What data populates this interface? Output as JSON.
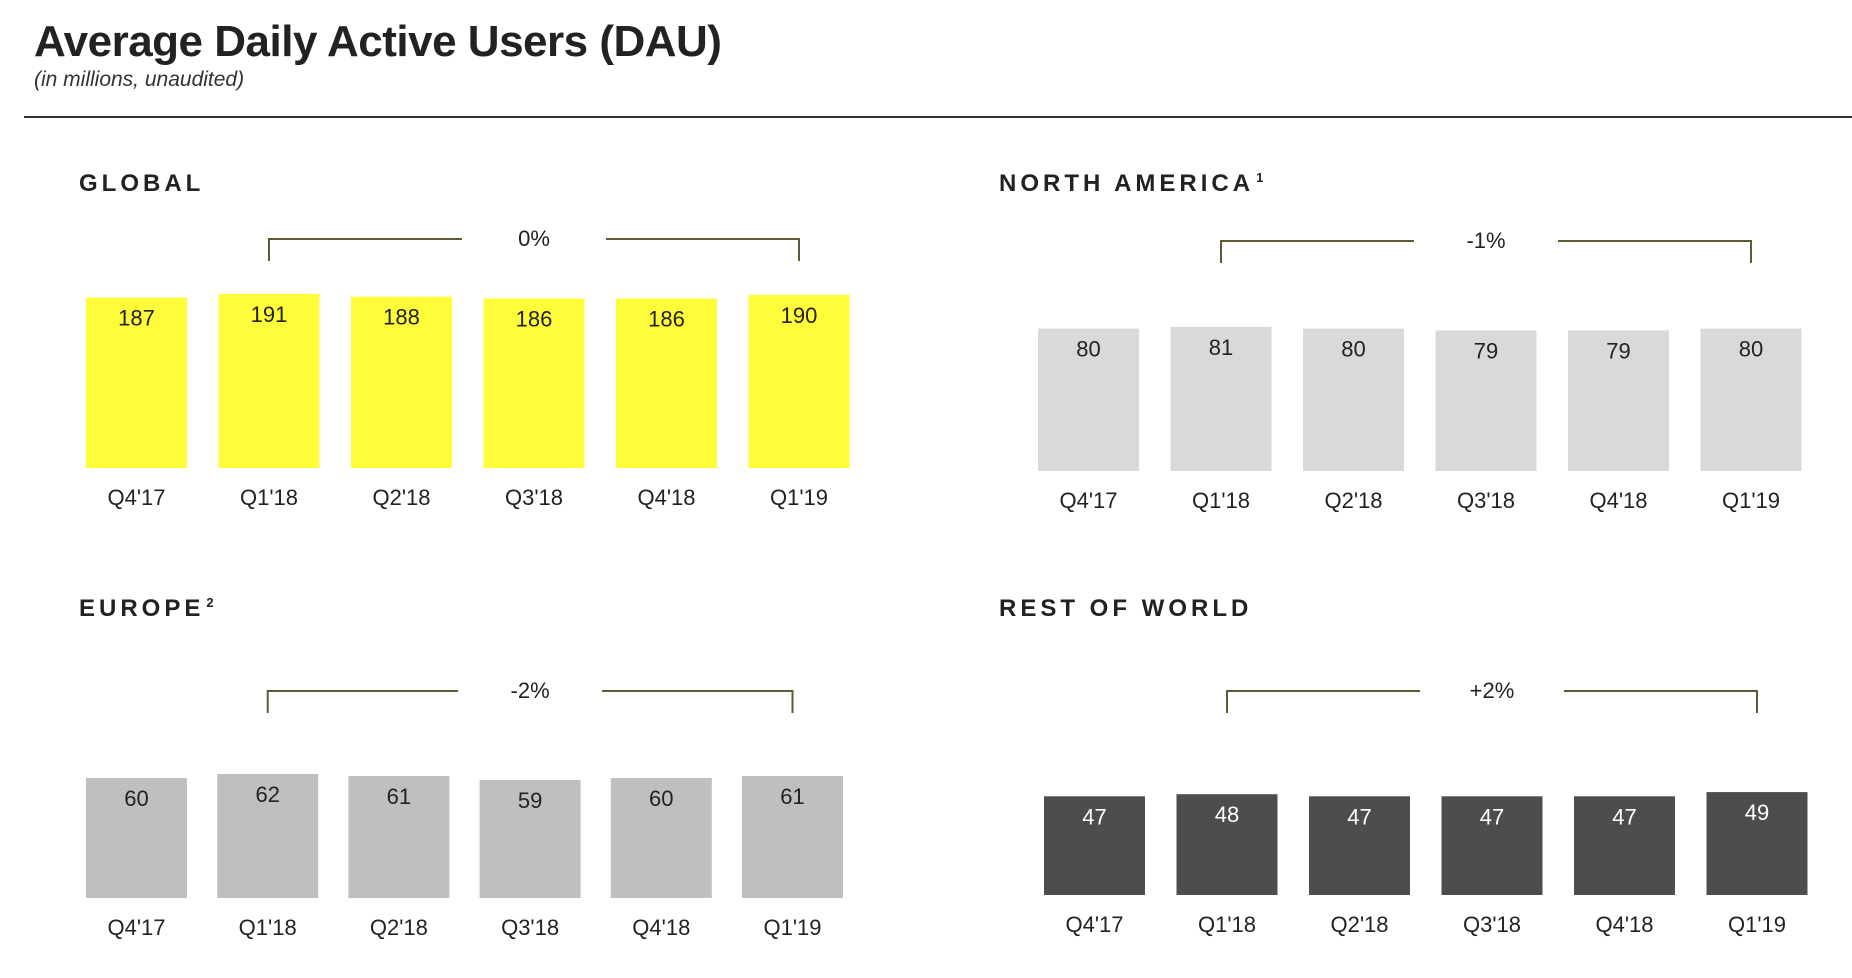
{
  "title": "Average Daily Active Users (DAU)",
  "subtitle": "(in millions, unaudited)",
  "colors": {
    "global_bar": "#FFFC39",
    "north_america_bar": "#D9D9D9",
    "europe_bar": "#BFBFBF",
    "rest_of_world_bar": "#4D4D4D",
    "bracket": "#5E5A34"
  },
  "chart_data": [
    {
      "type": "bar",
      "title": "GLOBAL",
      "footnote": "",
      "categories": [
        "Q4'17",
        "Q1'18",
        "Q2'18",
        "Q3'18",
        "Q4'18",
        "Q1'19"
      ],
      "values": [
        187,
        191,
        188,
        186,
        186,
        190
      ],
      "annotation": {
        "text": "0%",
        "from": "Q1'18",
        "to": "Q1'19"
      },
      "bar_color": "#FFFC39",
      "label_color": "#222222"
    },
    {
      "type": "bar",
      "title": "NORTH AMERICA",
      "footnote": "1",
      "categories": [
        "Q4'17",
        "Q1'18",
        "Q2'18",
        "Q3'18",
        "Q4'18",
        "Q1'19"
      ],
      "values": [
        80,
        81,
        80,
        79,
        79,
        80
      ],
      "annotation": {
        "text": "-1%",
        "from": "Q1'18",
        "to": "Q1'19"
      },
      "bar_color": "#D9D9D9",
      "label_color": "#222222"
    },
    {
      "type": "bar",
      "title": "EUROPE",
      "footnote": "2",
      "categories": [
        "Q4'17",
        "Q1'18",
        "Q2'18",
        "Q3'18",
        "Q4'18",
        "Q1'19"
      ],
      "values": [
        60,
        62,
        61,
        59,
        60,
        61
      ],
      "annotation": {
        "text": "-2%",
        "from": "Q1'18",
        "to": "Q1'19"
      },
      "bar_color": "#BFBFBF",
      "label_color": "#222222"
    },
    {
      "type": "bar",
      "title": "REST OF WORLD",
      "footnote": "",
      "categories": [
        "Q4'17",
        "Q1'18",
        "Q2'18",
        "Q3'18",
        "Q4'18",
        "Q1'19"
      ],
      "values": [
        47,
        48,
        47,
        47,
        47,
        49
      ],
      "annotation": {
        "text": "+2%",
        "from": "Q1'18",
        "to": "Q1'19"
      },
      "bar_color": "#4D4D4D",
      "label_color": "#FFFFFF"
    }
  ]
}
